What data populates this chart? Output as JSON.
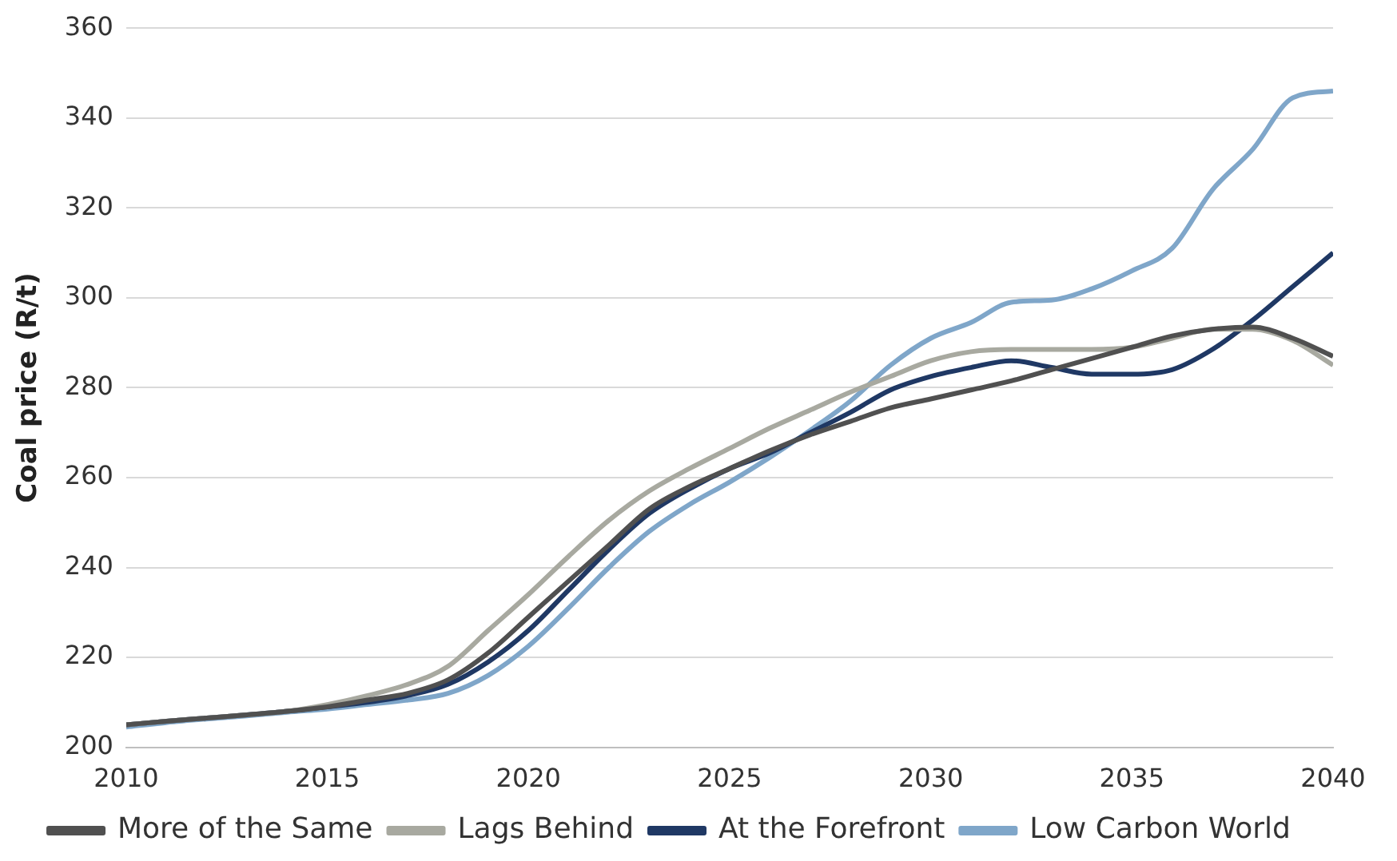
{
  "chart_data": {
    "type": "line",
    "ylabel": "Coal price (R/t)",
    "x": [
      2010,
      2011,
      2012,
      2013,
      2014,
      2015,
      2016,
      2017,
      2018,
      2019,
      2020,
      2021,
      2022,
      2023,
      2024,
      2025,
      2026,
      2027,
      2028,
      2029,
      2030,
      2031,
      2032,
      2033,
      2034,
      2035,
      2036,
      2037,
      2038,
      2039,
      2040
    ],
    "xlim": [
      2010,
      2040
    ],
    "xticks": [
      2010,
      2015,
      2020,
      2025,
      2030,
      2035,
      2040
    ],
    "ylim": [
      200,
      360
    ],
    "yticks": [
      200,
      220,
      240,
      260,
      280,
      300,
      320,
      340,
      360
    ],
    "grid": "y",
    "legend": "bottom",
    "marker": "none",
    "line_style": "solid",
    "series": [
      {
        "name": "More of the Same",
        "color": "#505050",
        "values": [
          205,
          205.8,
          206.5,
          207.2,
          208,
          209,
          210.5,
          212,
          215,
          221,
          229,
          237,
          245,
          253,
          258,
          262,
          266,
          269.5,
          272.5,
          275.5,
          277.5,
          279.5,
          281.5,
          284,
          286.5,
          289,
          291.5,
          293,
          293.5,
          291,
          287
        ]
      },
      {
        "name": "Lags Behind",
        "color": "#a8a9a0",
        "values": [
          205,
          205.8,
          206.5,
          207.2,
          208,
          209.5,
          211.5,
          214,
          218,
          226,
          234,
          242.5,
          250.5,
          257,
          262,
          266.5,
          271,
          275,
          279,
          282.5,
          286,
          288,
          288.5,
          288.5,
          288.5,
          289,
          291,
          293,
          293,
          290.5,
          285
        ]
      },
      {
        "name": "At the Forefront",
        "color": "#1f3864",
        "values": [
          205,
          205.8,
          206.5,
          207.2,
          208,
          209,
          210,
          211.5,
          214,
          219,
          226,
          235,
          244,
          252,
          257.5,
          262,
          265.5,
          270,
          274.5,
          279.5,
          282.5,
          284.5,
          286,
          284.5,
          283,
          283,
          284,
          288.5,
          295,
          302.5,
          310
        ]
      },
      {
        "name": "Low Carbon World",
        "color": "#7fa6c9",
        "values": [
          204.5,
          205.5,
          206.3,
          207,
          207.8,
          208.5,
          209.5,
          210.5,
          212,
          216,
          222.5,
          231,
          240,
          248,
          254,
          259,
          264.5,
          270.5,
          277,
          285,
          291,
          294.5,
          299,
          299.5,
          302,
          306,
          311,
          324,
          333,
          344.5,
          346
        ]
      }
    ]
  }
}
